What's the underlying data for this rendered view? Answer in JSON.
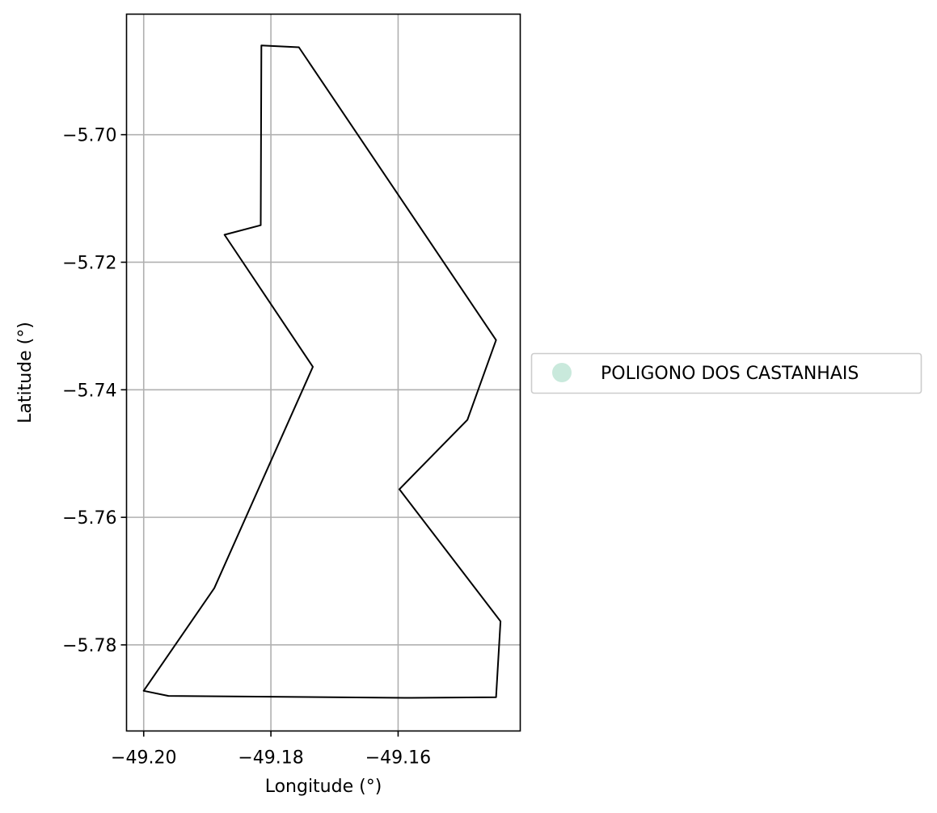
{
  "chart_data": {
    "type": "map",
    "title": "",
    "xlabel": "Longitude (°)",
    "ylabel": "Latitude (°)",
    "xlim": [
      -49.2027,
      -49.1408
    ],
    "ylim": [
      -5.7935,
      -5.6811
    ],
    "xticks": [
      -49.2,
      -49.18,
      -49.16
    ],
    "xtick_labels": [
      "−49.20",
      "−49.18",
      "−49.16"
    ],
    "yticks": [
      -5.7,
      -5.72,
      -5.74,
      -5.76,
      -5.78
    ],
    "ytick_labels": [
      "−5.70",
      "−5.72",
      "−5.74",
      "−5.76",
      "−5.78"
    ],
    "grid": true,
    "legend_position": "center-left outside (right of plot)",
    "series": [
      {
        "name": "POLIGONO DOS CASTANHAIS",
        "color": "#c9e9dc",
        "edgecolor": "#000000",
        "polygon": [
          [
            -49.1815,
            -5.686
          ],
          [
            -49.1756,
            -5.6863
          ],
          [
            -49.1446,
            -5.7322
          ],
          [
            -49.1491,
            -5.7447
          ],
          [
            -49.1598,
            -5.7556
          ],
          [
            -49.1439,
            -5.7763
          ],
          [
            -49.1446,
            -5.7882
          ],
          [
            -49.159,
            -5.7883
          ],
          [
            -49.1961,
            -5.788
          ],
          [
            -49.2,
            -5.7872
          ],
          [
            -49.1889,
            -5.7711
          ],
          [
            -49.1734,
            -5.7364
          ],
          [
            -49.1873,
            -5.7157
          ],
          [
            -49.1816,
            -5.7142
          ],
          [
            -49.1815,
            -5.686
          ]
        ]
      }
    ]
  }
}
